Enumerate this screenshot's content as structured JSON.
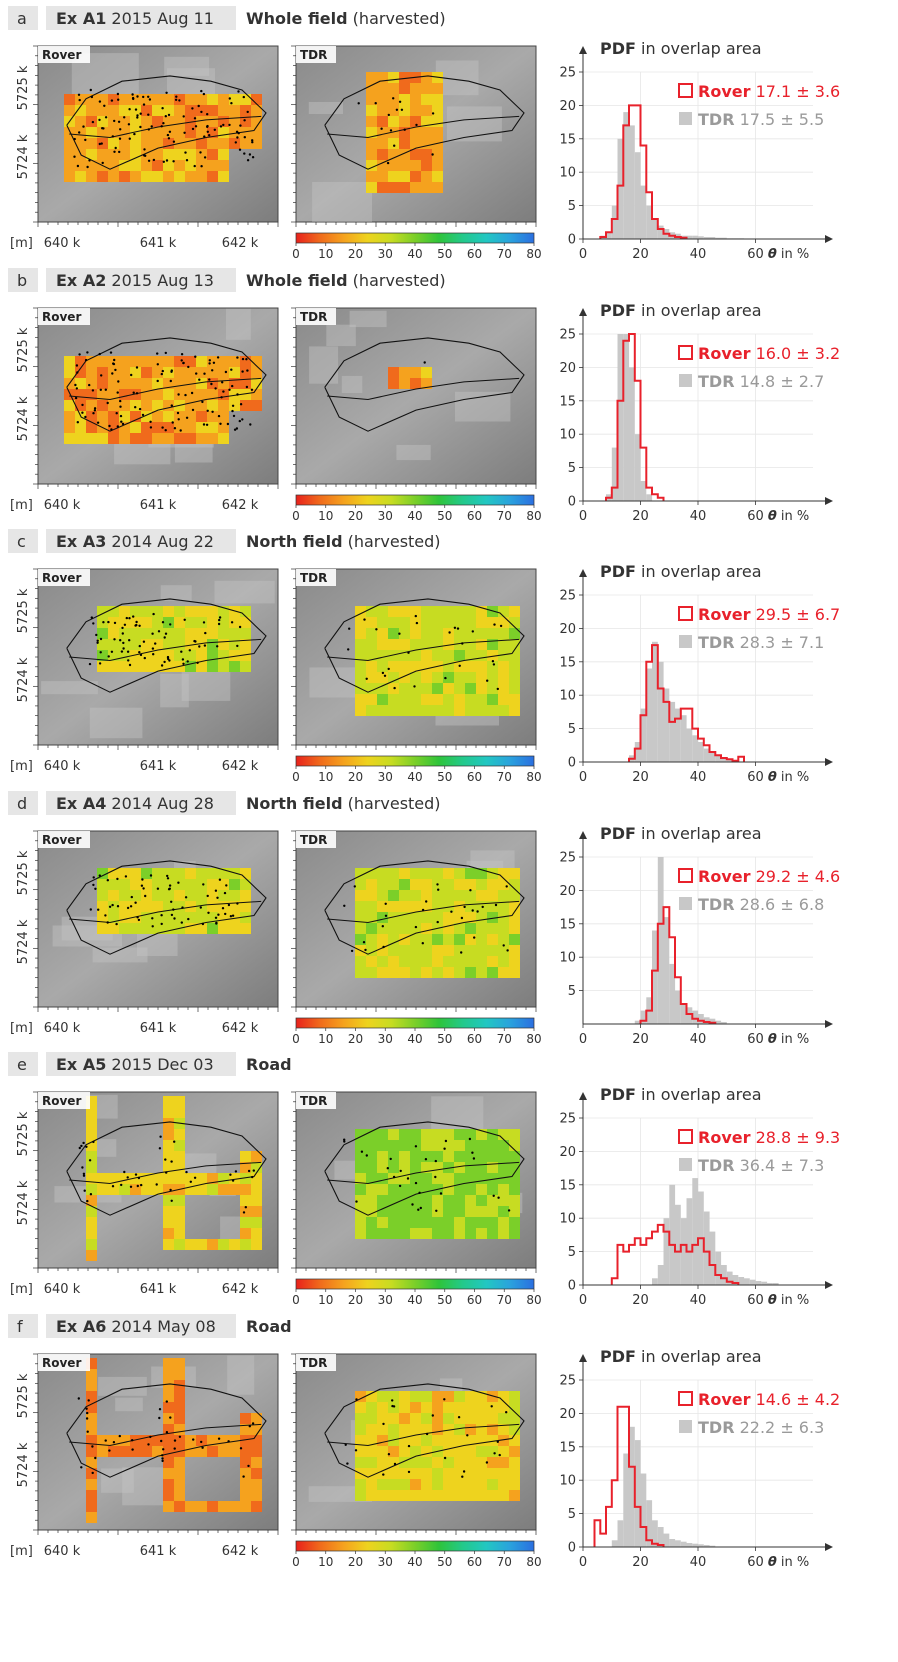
{
  "page": {
    "width": 898,
    "height": 1658
  },
  "labels": {
    "rover": "Rover",
    "tdr": "TDR",
    "pdf_word": "PDF",
    "pdf_rest": " in overlap area",
    "theta": "θ",
    "theta_unit": " in %",
    "m_unit": "[m]",
    "x_ticks": [
      "640 k",
      "641 k",
      "642 k"
    ],
    "y_ticks": [
      "5725 k",
      "5724 k"
    ],
    "hist_x_ticks": [
      0,
      20,
      40,
      60
    ],
    "hist_y_ticks": [
      0,
      5,
      10,
      15,
      20,
      25
    ],
    "colorbar_ticks": [
      0,
      10,
      20,
      30,
      40,
      50,
      60,
      70,
      80
    ]
  },
  "colors": {
    "rover": "#e8212b",
    "tdr": "#c8c8c8",
    "tdr_text": "#9a9a9a",
    "header_bg": "#e6e6e6",
    "colorbar": [
      "#e8211c",
      "#f06a1c",
      "#f5a21e",
      "#eed31e",
      "#c7dc22",
      "#7bcf29",
      "#2fc43a",
      "#23c98a",
      "#22c7c2",
      "#2aa2dd",
      "#2b6fe0"
    ]
  },
  "panels": [
    {
      "letter": "a",
      "id": "Ex A1",
      "date": "2015 Aug 11",
      "area": "Whole field",
      "note": "(harvested)",
      "rover_mean": "17.1",
      "rover_sd": "3.6",
      "tdr_mean": "17.5",
      "tdr_sd": "5.5",
      "axis_max": "60"
    },
    {
      "letter": "b",
      "id": "Ex A2",
      "date": "2015 Aug 13",
      "area": "Whole field",
      "note": "(harvested)",
      "rover_mean": "16.0",
      "rover_sd": "3.2",
      "tdr_mean": "14.8",
      "tdr_sd": "2.7",
      "axis_max": "60"
    },
    {
      "letter": "c",
      "id": "Ex A3",
      "date": "2014 Aug 22",
      "area": "North field",
      "note": "(harvested)",
      "rover_mean": "29.5",
      "rover_sd": "6.7",
      "tdr_mean": "28.3",
      "tdr_sd": "7.1",
      "axis_max": "60"
    },
    {
      "letter": "d",
      "id": "Ex A4",
      "date": "2014 Aug 28",
      "area": "North field",
      "note": "(harvested)",
      "rover_mean": "29.2",
      "rover_sd": "4.6",
      "tdr_mean": "28.6",
      "tdr_sd": "6.8",
      "axis_max": "60"
    },
    {
      "letter": "e",
      "id": "Ex A5",
      "date": "2015 Dec 03",
      "area": "Road",
      "note": "",
      "rover_mean": "28.8",
      "rover_sd": "9.3",
      "tdr_mean": "36.4",
      "tdr_sd": "7.3",
      "axis_max": "60"
    },
    {
      "letter": "f",
      "id": "Ex A6",
      "date": "2014 May 08",
      "area": "Road",
      "note": "",
      "rover_mean": "14.6",
      "rover_sd": "4.2",
      "tdr_mean": "22.2",
      "tdr_sd": "6.3",
      "axis_max": "60"
    }
  ],
  "chart_data": [
    {
      "type": "bar",
      "title": "PDF in overlap area",
      "xlabel": "θ in %",
      "xlim": [
        0,
        80
      ],
      "ylim": [
        0,
        25
      ],
      "bin_width": 2,
      "series": [
        {
          "name": "Rover",
          "mean": 17.1,
          "sd": 3.6,
          "bin_start": 6,
          "values": [
            0.3,
            1,
            3,
            8,
            17,
            20,
            20,
            14,
            7,
            3,
            1.5,
            0.8,
            0.5,
            0.3,
            0.2
          ]
        },
        {
          "name": "TDR",
          "mean": 17.5,
          "sd": 5.5,
          "bin_start": 6,
          "values": [
            0.5,
            1,
            5,
            15,
            19,
            17,
            13,
            8,
            5,
            3,
            2,
            1.5,
            1,
            0.8,
            0.5,
            0.5,
            0.5,
            0.4,
            0.3,
            0.3,
            0.2,
            0.2,
            0.1,
            0.1,
            0.1
          ]
        }
      ]
    },
    {
      "type": "bar",
      "title": "PDF in overlap area",
      "xlabel": "θ in %",
      "xlim": [
        0,
        80
      ],
      "ylim": [
        0,
        25
      ],
      "bin_width": 2,
      "series": [
        {
          "name": "Rover",
          "mean": 16.0,
          "sd": 3.2,
          "bin_start": 8,
          "values": [
            0.5,
            2,
            15,
            24,
            25,
            18,
            8,
            2,
            1,
            0.5
          ]
        },
        {
          "name": "TDR",
          "mean": 14.8,
          "sd": 2.7,
          "bin_start": 8,
          "values": [
            1,
            8,
            27,
            25,
            20,
            10,
            3,
            1
          ]
        }
      ]
    },
    {
      "type": "bar",
      "title": "PDF in overlap area",
      "xlabel": "θ in %",
      "xlim": [
        0,
        80
      ],
      "ylim": [
        0,
        25
      ],
      "bin_width": 2,
      "series": [
        {
          "name": "Rover",
          "mean": 29.5,
          "sd": 6.7,
          "bin_start": 16,
          "values": [
            0.5,
            2,
            7,
            15,
            17.5,
            11,
            9,
            6,
            6.5,
            8,
            8,
            5,
            3.5,
            2.5,
            1.5,
            1,
            0.6,
            0.4,
            0.2,
            0.8
          ]
        },
        {
          "name": "TDR",
          "mean": 28.3,
          "sd": 7.1,
          "bin_start": 16,
          "values": [
            1,
            3,
            8,
            14,
            18,
            15,
            11,
            9,
            8,
            7,
            5,
            4,
            3,
            2,
            1.5,
            1,
            0.6,
            0.4,
            0.3
          ]
        }
      ]
    },
    {
      "type": "bar",
      "title": "PDF in overlap area",
      "xlabel": "θ in %",
      "xlim": [
        0,
        80
      ],
      "ylim": [
        0,
        25
      ],
      "bin_width": 2,
      "series": [
        {
          "name": "Rover",
          "mean": 29.2,
          "sd": 4.6,
          "bin_start": 20,
          "values": [
            0.5,
            2,
            8,
            15,
            17.5,
            13,
            7,
            3,
            1.5,
            0.8,
            0.5,
            0.3,
            0.2
          ]
        },
        {
          "name": "TDR",
          "mean": 28.6,
          "sd": 6.8,
          "bin_start": 18,
          "values": [
            0.5,
            2,
            4,
            14,
            25,
            16,
            9,
            5,
            3,
            2.5,
            2,
            1.5,
            1,
            0.8,
            0.5,
            0.3
          ]
        }
      ]
    },
    {
      "type": "bar",
      "title": "PDF in overlap area",
      "xlabel": "θ in %",
      "xlim": [
        0,
        80
      ],
      "ylim": [
        0,
        25
      ],
      "bin_width": 2,
      "series": [
        {
          "name": "Rover",
          "mean": 28.8,
          "sd": 9.3,
          "bin_start": 10,
          "values": [
            1,
            6,
            5,
            6,
            7,
            6,
            7,
            8,
            9,
            8,
            6,
            5,
            6,
            5,
            6,
            7,
            5,
            3,
            1.5,
            1,
            0.5,
            0.3
          ]
        },
        {
          "name": "TDR",
          "mean": 36.4,
          "sd": 7.3,
          "bin_start": 24,
          "values": [
            1,
            3,
            10,
            15,
            12,
            10,
            13,
            16,
            14,
            11,
            8,
            5,
            3,
            2,
            1.5,
            1.2,
            1,
            0.8,
            0.6,
            0.5,
            0.3,
            0.3
          ]
        }
      ]
    },
    {
      "type": "bar",
      "title": "PDF in overlap area",
      "xlabel": "θ in %",
      "xlim": [
        0,
        80
      ],
      "ylim": [
        0,
        25
      ],
      "bin_width": 2,
      "series": [
        {
          "name": "Rover",
          "mean": 14.6,
          "sd": 4.2,
          "bin_start": 4,
          "values": [
            4,
            2,
            6,
            10,
            21,
            21,
            12,
            6,
            3,
            1,
            0.5,
            0.3
          ]
        },
        {
          "name": "TDR",
          "mean": 22.2,
          "sd": 6.3,
          "bin_start": 10,
          "values": [
            1,
            4,
            14,
            18,
            16,
            11,
            7,
            4,
            3,
            2,
            1.2,
            1,
            0.8,
            0.6,
            0.5,
            0.4,
            0.3,
            0.2
          ]
        }
      ]
    }
  ]
}
